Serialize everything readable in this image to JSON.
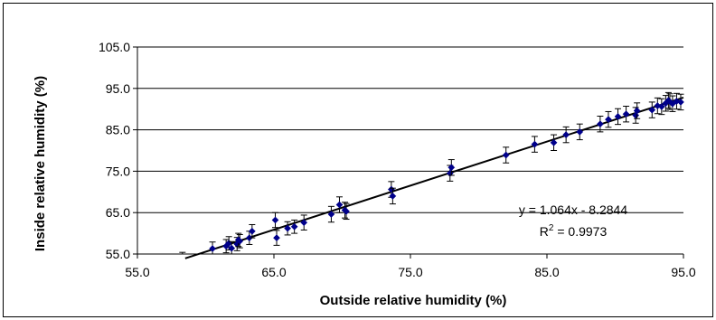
{
  "chart_data": {
    "type": "scatter",
    "title": "",
    "xlabel": "Outside relative humidity (%)",
    "ylabel": "Inside relative humidity (%)",
    "xlim": [
      55.0,
      95.0
    ],
    "ylim": [
      55.0,
      105.0
    ],
    "xticks": [
      55,
      65,
      75,
      85,
      95
    ],
    "yticks": [
      55,
      65,
      75,
      85,
      95,
      105
    ],
    "xtick_labels": [
      "55.0",
      "65.0",
      "75.0",
      "85.0",
      "95.0"
    ],
    "ytick_labels": [
      "55.0",
      "65.0",
      "75.0",
      "85.0",
      "95.0",
      "105.0"
    ],
    "grid": {
      "major_y": true,
      "major_x": false
    },
    "marker_color": "#00008B",
    "series": [
      {
        "x": [
          58.3,
          60.5,
          61.5,
          61.7,
          61.9,
          62.3,
          62.5,
          62.4,
          63.2,
          63.4,
          65.1,
          65.2,
          66.0,
          66.5,
          67.2,
          69.2,
          69.8,
          70.2,
          70.3,
          73.6,
          73.7,
          77.9,
          78.0,
          82.0,
          84.1,
          85.5,
          86.4,
          87.4,
          88.9,
          89.5,
          90.2,
          90.8,
          91.5,
          91.6,
          92.7,
          93.1,
          93.4,
          93.7,
          93.9,
          94.0,
          94.2,
          94.5,
          94.8
        ],
        "y": [
          53.8,
          56.3,
          56.9,
          57.6,
          56.4,
          57.4,
          58.1,
          58.4,
          58.9,
          60.5,
          63.2,
          58.9,
          61.2,
          61.6,
          62.6,
          64.6,
          66.9,
          65.6,
          65.3,
          70.6,
          69.0,
          74.5,
          75.9,
          78.9,
          81.5,
          81.9,
          83.8,
          84.5,
          86.4,
          87.5,
          88.2,
          88.8,
          88.5,
          89.6,
          89.8,
          90.8,
          90.6,
          91.4,
          92.1,
          91.8,
          91.3,
          91.9,
          91.7
        ],
        "error": [
          1.6,
          1.6,
          1.6,
          1.6,
          1.6,
          1.6,
          1.6,
          1.6,
          1.6,
          1.6,
          1.8,
          1.8,
          1.6,
          1.6,
          1.8,
          1.9,
          1.9,
          1.9,
          1.9,
          1.9,
          1.9,
          1.9,
          1.9,
          1.9,
          1.9,
          1.9,
          1.9,
          1.9,
          1.9,
          1.9,
          1.9,
          1.9,
          1.9,
          1.9,
          1.9,
          1.9,
          1.9,
          1.9,
          1.9,
          1.9,
          1.9,
          1.9,
          1.9
        ]
      }
    ],
    "trendline": {
      "slope": 1.064,
      "intercept": -8.2844,
      "x_range": [
        58.5,
        95.0
      ],
      "equation": "y = 1.064x - 8.2844",
      "r2_prefix": "R",
      "r2_sup": "2",
      "r2_suffix": " = 0.9973"
    }
  }
}
